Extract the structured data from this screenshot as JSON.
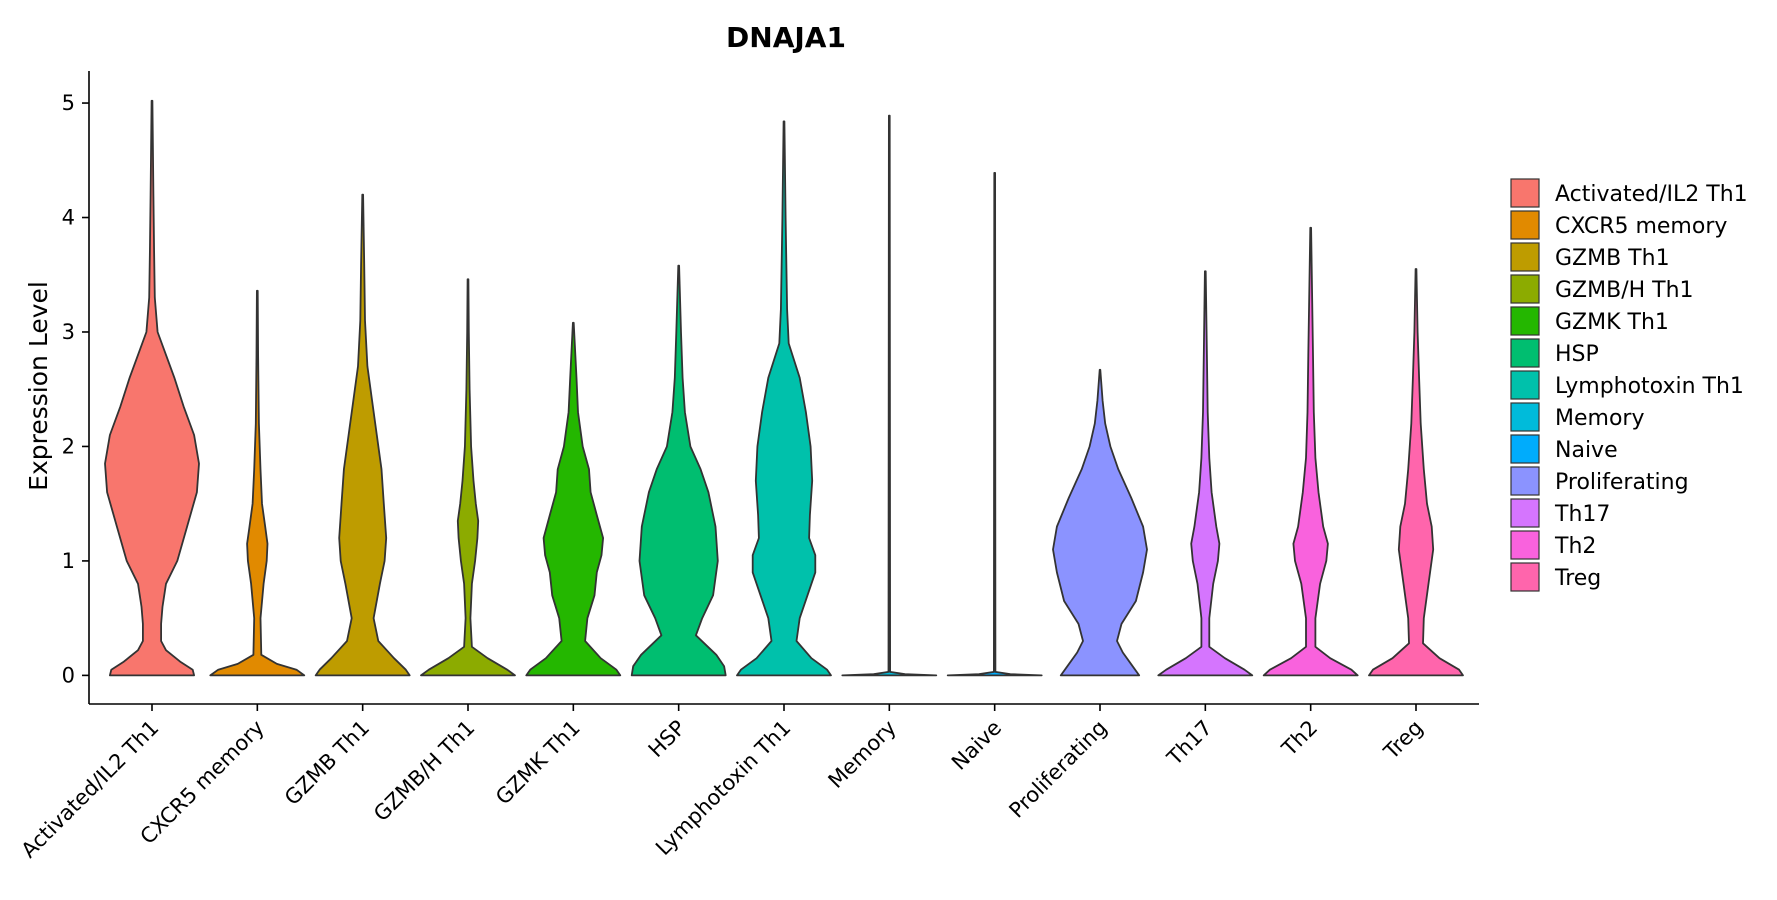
{
  "chart_data": {
    "type": "violin",
    "title": "DNAJA1",
    "xlabel": "",
    "ylabel": "Expression Level",
    "ylim": [
      -0.25,
      5.28
    ],
    "yticks": [
      "0",
      "1",
      "2",
      "3",
      "4",
      "5"
    ],
    "grid": false,
    "legend_position": "right",
    "categories": [
      "Activated/IL2 Th1",
      "CXCR5 memory",
      "GZMB Th1",
      "GZMB/H Th1",
      "GZMK Th1",
      "HSP",
      "Lymphotoxin Th1",
      "Memory",
      "Naive",
      "Proliferating",
      "Th17",
      "Th2",
      "Treg"
    ],
    "colors": [
      "#F8766D",
      "#E18A00",
      "#BE9C00",
      "#8CAB00",
      "#24B700",
      "#00BE70",
      "#00C1AB",
      "#00BBDA",
      "#00ACFC",
      "#8B93FF",
      "#D575FE",
      "#F962DD",
      "#FF65AC"
    ],
    "max_values": [
      5.02,
      3.36,
      4.2,
      3.46,
      3.08,
      3.58,
      4.84,
      4.89,
      4.39,
      2.67,
      3.53,
      3.91,
      3.55
    ],
    "density_profiles": [
      [
        [
          0,
          0.6
        ],
        [
          0.05,
          0.58
        ],
        [
          0.12,
          0.4
        ],
        [
          0.22,
          0.2
        ],
        [
          0.3,
          0.13
        ],
        [
          0.45,
          0.13
        ],
        [
          0.6,
          0.15
        ],
        [
          0.8,
          0.2
        ],
        [
          1.0,
          0.36
        ],
        [
          1.3,
          0.5
        ],
        [
          1.6,
          0.64
        ],
        [
          1.85,
          0.67
        ],
        [
          2.1,
          0.6
        ],
        [
          2.35,
          0.45
        ],
        [
          2.6,
          0.32
        ],
        [
          2.8,
          0.2
        ],
        [
          3.0,
          0.08
        ],
        [
          3.3,
          0.04
        ],
        [
          3.7,
          0.03
        ],
        [
          4.2,
          0.02
        ],
        [
          5.02,
          0.005
        ]
      ],
      [
        [
          0,
          0.6
        ],
        [
          0.05,
          0.5
        ],
        [
          0.1,
          0.25
        ],
        [
          0.18,
          0.05
        ],
        [
          0.5,
          0.04
        ],
        [
          0.8,
          0.08
        ],
        [
          1.0,
          0.12
        ],
        [
          1.15,
          0.13
        ],
        [
          1.3,
          0.1
        ],
        [
          1.5,
          0.06
        ],
        [
          1.8,
          0.04
        ],
        [
          2.2,
          0.02
        ],
        [
          2.8,
          0.01
        ],
        [
          3.36,
          0.005
        ]
      ],
      [
        [
          0,
          0.6
        ],
        [
          0.05,
          0.55
        ],
        [
          0.15,
          0.4
        ],
        [
          0.3,
          0.2
        ],
        [
          0.5,
          0.14
        ],
        [
          0.8,
          0.22
        ],
        [
          1.0,
          0.28
        ],
        [
          1.2,
          0.3
        ],
        [
          1.5,
          0.27
        ],
        [
          1.8,
          0.24
        ],
        [
          2.1,
          0.18
        ],
        [
          2.4,
          0.12
        ],
        [
          2.7,
          0.06
        ],
        [
          3.1,
          0.03
        ],
        [
          3.6,
          0.02
        ],
        [
          4.2,
          0.005
        ]
      ],
      [
        [
          0,
          0.6
        ],
        [
          0.05,
          0.5
        ],
        [
          0.15,
          0.25
        ],
        [
          0.25,
          0.05
        ],
        [
          0.5,
          0.03
        ],
        [
          0.8,
          0.05
        ],
        [
          1.0,
          0.09
        ],
        [
          1.2,
          0.12
        ],
        [
          1.35,
          0.13
        ],
        [
          1.5,
          0.1
        ],
        [
          1.7,
          0.07
        ],
        [
          2.0,
          0.04
        ],
        [
          2.5,
          0.02
        ],
        [
          3.0,
          0.01
        ],
        [
          3.46,
          0.005
        ]
      ],
      [
        [
          0,
          0.6
        ],
        [
          0.05,
          0.55
        ],
        [
          0.15,
          0.35
        ],
        [
          0.3,
          0.15
        ],
        [
          0.5,
          0.18
        ],
        [
          0.7,
          0.27
        ],
        [
          0.9,
          0.3
        ],
        [
          1.05,
          0.36
        ],
        [
          1.2,
          0.38
        ],
        [
          1.4,
          0.3
        ],
        [
          1.6,
          0.22
        ],
        [
          1.8,
          0.2
        ],
        [
          2.0,
          0.12
        ],
        [
          2.3,
          0.06
        ],
        [
          2.6,
          0.04
        ],
        [
          3.08,
          0.005
        ]
      ],
      [
        [
          0,
          0.6
        ],
        [
          0.08,
          0.58
        ],
        [
          0.18,
          0.48
        ],
        [
          0.35,
          0.22
        ],
        [
          0.5,
          0.3
        ],
        [
          0.7,
          0.44
        ],
        [
          1.0,
          0.5
        ],
        [
          1.3,
          0.47
        ],
        [
          1.6,
          0.38
        ],
        [
          1.8,
          0.28
        ],
        [
          2.0,
          0.15
        ],
        [
          2.3,
          0.08
        ],
        [
          2.6,
          0.05
        ],
        [
          3.0,
          0.03
        ],
        [
          3.58,
          0.005
        ]
      ],
      [
        [
          0,
          0.6
        ],
        [
          0.05,
          0.55
        ],
        [
          0.15,
          0.35
        ],
        [
          0.3,
          0.16
        ],
        [
          0.5,
          0.2
        ],
        [
          0.7,
          0.3
        ],
        [
          0.9,
          0.4
        ],
        [
          1.05,
          0.4
        ],
        [
          1.2,
          0.32
        ],
        [
          1.4,
          0.33
        ],
        [
          1.7,
          0.36
        ],
        [
          2.0,
          0.34
        ],
        [
          2.3,
          0.28
        ],
        [
          2.6,
          0.2
        ],
        [
          2.9,
          0.06
        ],
        [
          3.2,
          0.04
        ],
        [
          4.0,
          0.02
        ],
        [
          4.84,
          0.005
        ]
      ],
      [
        [
          0,
          0.6
        ],
        [
          0.01,
          0.2
        ],
        [
          0.03,
          0.01
        ],
        [
          4.89,
          0.005
        ]
      ],
      [
        [
          0,
          0.6
        ],
        [
          0.01,
          0.2
        ],
        [
          0.03,
          0.01
        ],
        [
          4.39,
          0.005
        ]
      ],
      [
        [
          0,
          0.6
        ],
        [
          0.08,
          0.5
        ],
        [
          0.2,
          0.35
        ],
        [
          0.3,
          0.26
        ],
        [
          0.45,
          0.33
        ],
        [
          0.65,
          0.55
        ],
        [
          0.9,
          0.66
        ],
        [
          1.1,
          0.72
        ],
        [
          1.3,
          0.66
        ],
        [
          1.55,
          0.48
        ],
        [
          1.8,
          0.28
        ],
        [
          2.0,
          0.16
        ],
        [
          2.2,
          0.08
        ],
        [
          2.4,
          0.04
        ],
        [
          2.67,
          0.005
        ]
      ],
      [
        [
          0,
          0.6
        ],
        [
          0.05,
          0.5
        ],
        [
          0.15,
          0.25
        ],
        [
          0.25,
          0.05
        ],
        [
          0.5,
          0.05
        ],
        [
          0.8,
          0.1
        ],
        [
          1.0,
          0.16
        ],
        [
          1.15,
          0.18
        ],
        [
          1.3,
          0.14
        ],
        [
          1.6,
          0.08
        ],
        [
          1.9,
          0.05
        ],
        [
          2.3,
          0.03
        ],
        [
          2.8,
          0.02
        ],
        [
          3.53,
          0.005
        ]
      ],
      [
        [
          0,
          0.6
        ],
        [
          0.05,
          0.52
        ],
        [
          0.15,
          0.25
        ],
        [
          0.25,
          0.06
        ],
        [
          0.5,
          0.06
        ],
        [
          0.8,
          0.12
        ],
        [
          1.0,
          0.2
        ],
        [
          1.15,
          0.22
        ],
        [
          1.3,
          0.16
        ],
        [
          1.6,
          0.1
        ],
        [
          1.9,
          0.06
        ],
        [
          2.3,
          0.04
        ],
        [
          2.8,
          0.03
        ],
        [
          3.91,
          0.005
        ]
      ],
      [
        [
          0,
          0.6
        ],
        [
          0.05,
          0.55
        ],
        [
          0.15,
          0.3
        ],
        [
          0.28,
          0.09
        ],
        [
          0.5,
          0.1
        ],
        [
          0.8,
          0.16
        ],
        [
          1.1,
          0.22
        ],
        [
          1.3,
          0.2
        ],
        [
          1.5,
          0.14
        ],
        [
          1.8,
          0.1
        ],
        [
          2.2,
          0.06
        ],
        [
          2.6,
          0.04
        ],
        [
          3.0,
          0.02
        ],
        [
          3.55,
          0.005
        ]
      ]
    ]
  }
}
